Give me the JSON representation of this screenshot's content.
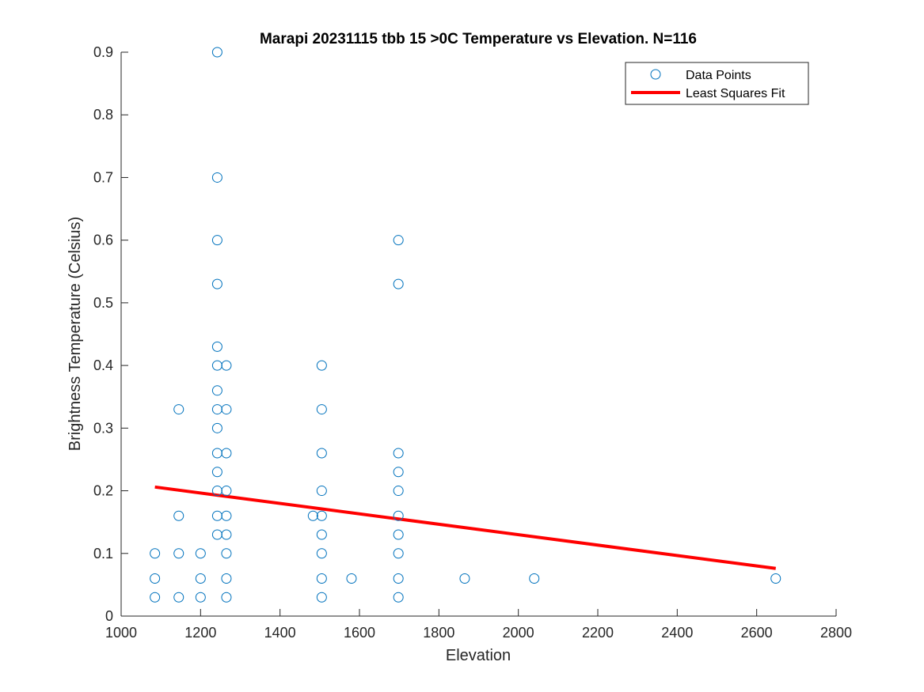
{
  "chart_data": {
    "type": "scatter",
    "title": "Marapi 20231115 tbb 15 >0C Temperature vs Elevation. N=116",
    "xlabel": "Elevation",
    "ylabel": "Brightness Temperature (Celsius)",
    "xlim": [
      1000,
      2800
    ],
    "ylim": [
      0,
      0.9
    ],
    "x_ticks": [
      "1000",
      "1200",
      "1400",
      "1600",
      "1800",
      "2000",
      "2200",
      "2400",
      "2600",
      "2800"
    ],
    "y_ticks": [
      "0",
      "0.1",
      "0.2",
      "0.3",
      "0.4",
      "0.5",
      "0.6",
      "0.7",
      "0.8",
      "0.9"
    ],
    "grid": false,
    "legend_position": "top-right",
    "series": [
      {
        "name": "Data Points",
        "kind": "scatter",
        "marker": "circle-open",
        "color": "#0072BD",
        "points": [
          [
            1085,
            0.03
          ],
          [
            1085,
            0.06
          ],
          [
            1085,
            0.1
          ],
          [
            1145,
            0.03
          ],
          [
            1145,
            0.1
          ],
          [
            1145,
            0.16
          ],
          [
            1145,
            0.33
          ],
          [
            1200,
            0.03
          ],
          [
            1200,
            0.06
          ],
          [
            1200,
            0.1
          ],
          [
            1242,
            0.13
          ],
          [
            1242,
            0.16
          ],
          [
            1242,
            0.2
          ],
          [
            1242,
            0.23
          ],
          [
            1242,
            0.26
          ],
          [
            1242,
            0.3
          ],
          [
            1242,
            0.33
          ],
          [
            1242,
            0.36
          ],
          [
            1242,
            0.4
          ],
          [
            1242,
            0.43
          ],
          [
            1242,
            0.53
          ],
          [
            1242,
            0.6
          ],
          [
            1242,
            0.7
          ],
          [
            1242,
            0.9
          ],
          [
            1265,
            0.03
          ],
          [
            1265,
            0.06
          ],
          [
            1265,
            0.1
          ],
          [
            1265,
            0.13
          ],
          [
            1265,
            0.16
          ],
          [
            1265,
            0.2
          ],
          [
            1265,
            0.26
          ],
          [
            1265,
            0.33
          ],
          [
            1265,
            0.4
          ],
          [
            1483,
            0.16
          ],
          [
            1505,
            0.03
          ],
          [
            1505,
            0.06
          ],
          [
            1505,
            0.1
          ],
          [
            1505,
            0.13
          ],
          [
            1505,
            0.16
          ],
          [
            1505,
            0.2
          ],
          [
            1505,
            0.26
          ],
          [
            1505,
            0.33
          ],
          [
            1505,
            0.4
          ],
          [
            1580,
            0.06
          ],
          [
            1698,
            0.03
          ],
          [
            1698,
            0.06
          ],
          [
            1698,
            0.1
          ],
          [
            1698,
            0.13
          ],
          [
            1698,
            0.16
          ],
          [
            1698,
            0.2
          ],
          [
            1698,
            0.23
          ],
          [
            1698,
            0.26
          ],
          [
            1698,
            0.53
          ],
          [
            1698,
            0.6
          ],
          [
            1865,
            0.06
          ],
          [
            2040,
            0.06
          ],
          [
            2648,
            0.06
          ]
        ]
      },
      {
        "name": "Least Squares Fit",
        "kind": "line",
        "color": "#FF0000",
        "points": [
          [
            1085,
            0.206
          ],
          [
            2648,
            0.076
          ]
        ]
      }
    ]
  }
}
